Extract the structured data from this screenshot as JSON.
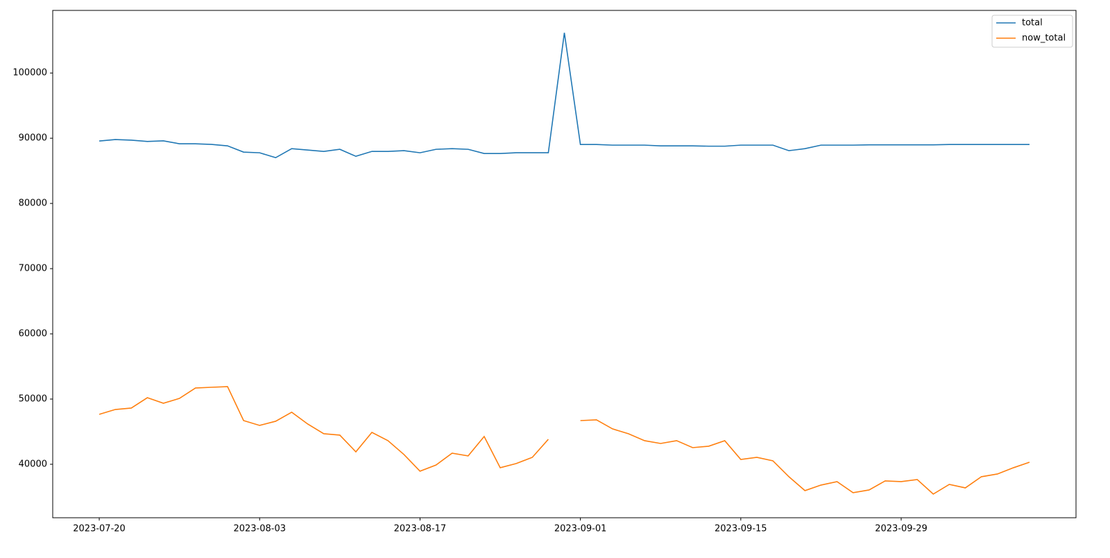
{
  "chart_data": {
    "type": "line",
    "categories": [
      "2023-07-20",
      null,
      null,
      null,
      null,
      null,
      null,
      null,
      null,
      null,
      "2023-08-03",
      null,
      null,
      null,
      null,
      null,
      null,
      null,
      null,
      null,
      "2023-08-17",
      null,
      null,
      null,
      null,
      null,
      null,
      null,
      null,
      null,
      "2023-09-01",
      null,
      null,
      null,
      null,
      null,
      null,
      null,
      null,
      null,
      "2023-09-15",
      null,
      null,
      null,
      null,
      null,
      null,
      null,
      null,
      null,
      "2023-09-29",
      null,
      null,
      null,
      null,
      null,
      null,
      null,
      null
    ],
    "series": [
      {
        "name": "total",
        "color": "#1f77b4",
        "values": [
          89570,
          89800,
          89700,
          89500,
          89600,
          89150,
          89150,
          89050,
          88830,
          87870,
          87770,
          87020,
          88400,
          88190,
          87980,
          88300,
          87230,
          87980,
          87980,
          88090,
          87770,
          88300,
          88400,
          88300,
          87660,
          87660,
          87770,
          87770,
          87770,
          106170,
          89040,
          89040,
          88940,
          88940,
          88940,
          88830,
          88830,
          88830,
          88780,
          88780,
          88940,
          88940,
          88940,
          88090,
          88400,
          88940,
          88940,
          88940,
          88990,
          88990,
          88990,
          88990,
          88990,
          89040,
          89040,
          89040,
          89040,
          89040,
          89040
        ]
      },
      {
        "name": "now_total",
        "color": "#ff7f0e",
        "values": [
          47660,
          48400,
          48620,
          50210,
          49360,
          50100,
          51700,
          51810,
          51910,
          46700,
          45960,
          46600,
          47980,
          46170,
          44680,
          44470,
          41910,
          44890,
          43620,
          41490,
          38940,
          39890,
          41700,
          41280,
          44260,
          39470,
          40110,
          41060,
          43830,
          null,
          46700,
          46810,
          45430,
          44680,
          43620,
          43190,
          43620,
          42550,
          42770,
          43620,
          40740,
          41060,
          40530,
          38090,
          35960,
          36810,
          37340,
          35640,
          36060,
          37450,
          37340,
          37660,
          35430,
          36910,
          36380,
          38090,
          38510,
          39470,
          40320
        ]
      }
    ],
    "ylim": [
      31800,
      109600
    ],
    "yticks": [
      40000,
      50000,
      60000,
      70000,
      80000,
      90000,
      100000
    ],
    "legend": "upper right"
  }
}
